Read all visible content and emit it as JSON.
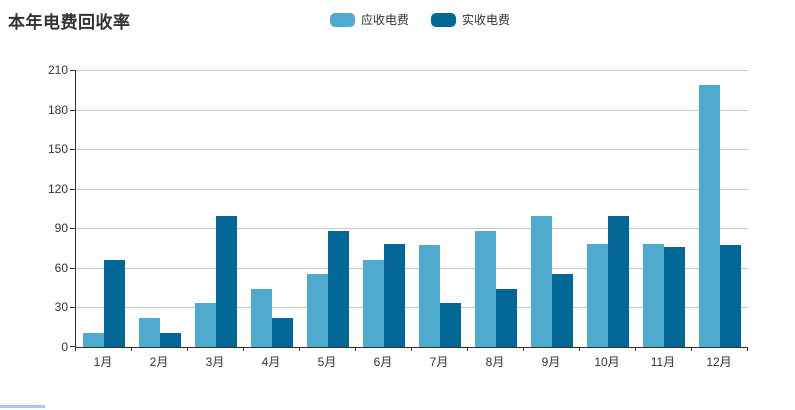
{
  "header": {
    "title": "本年电费回收率"
  },
  "chart_data": {
    "type": "bar",
    "title": "本年电费回收率",
    "categories": [
      "1月",
      "2月",
      "3月",
      "4月",
      "5月",
      "6月",
      "7月",
      "8月",
      "9月",
      "10月",
      "11月",
      "12月"
    ],
    "series": [
      {
        "name": "应收电费",
        "color": "#4EAACF",
        "values": [
          11,
          22,
          33,
          44,
          55,
          66,
          77,
          88,
          99,
          78,
          78,
          199
        ]
      },
      {
        "name": "实收电费",
        "color": "#036898",
        "values": [
          66,
          11,
          99,
          22,
          88,
          78,
          33,
          44,
          55,
          99,
          76,
          77
        ]
      }
    ],
    "xlabel": "",
    "ylabel": "",
    "ylim": [
      0,
      210
    ],
    "yticks": [
      0,
      30,
      60,
      90,
      120,
      150,
      180,
      210
    ],
    "grid": true,
    "legend_position": "top-center",
    "axis_color": "#333333",
    "grid_color": "#cccccc"
  },
  "misc": {
    "bottom_cutoff_color": "#a9c7f0"
  }
}
